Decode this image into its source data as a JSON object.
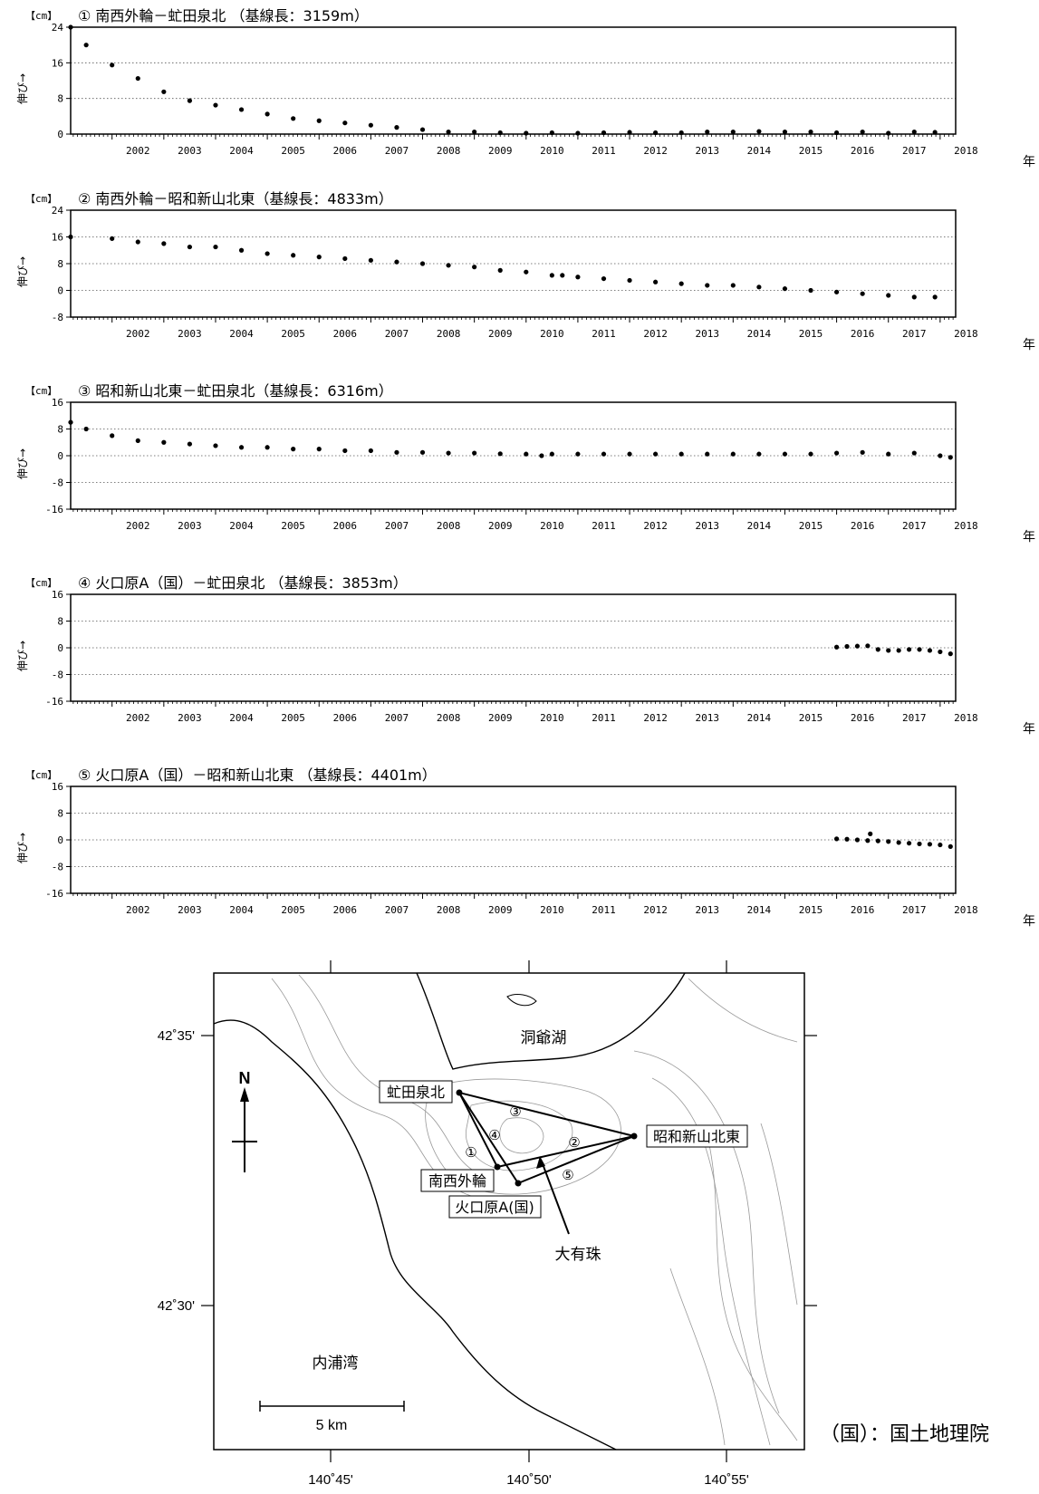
{
  "year_suffix": "年",
  "ylabel": "伸び→",
  "unit": "【cm】",
  "chart_data": [
    {
      "type": "scatter",
      "title": "① 南西外輪－虻田泉北 （基線長：3159m）",
      "ylim": [
        0,
        24
      ],
      "yticks": [
        24,
        16,
        8,
        0
      ],
      "xlim": [
        2001.2,
        2018.3
      ],
      "xticks": [
        "2002",
        "2003",
        "2004",
        "2005",
        "2006",
        "2007",
        "2008",
        "2009",
        "2010",
        "2011",
        "2012",
        "2013",
        "2014",
        "2015",
        "2016",
        "2017",
        "2018"
      ],
      "grid": true,
      "series": [
        {
          "x": [
            2001.2,
            2001.5,
            2002.0,
            2002.5,
            2003.0,
            2003.5,
            2004.0,
            2004.5,
            2005.0,
            2005.5,
            2006.0,
            2006.5,
            2007.0,
            2007.5,
            2008.0,
            2008.5,
            2009.0,
            2009.5,
            2010.0,
            2010.5,
            2011.0,
            2011.5,
            2012.0,
            2012.5,
            2013.0,
            2013.5,
            2014.0,
            2014.5,
            2015.0,
            2015.5,
            2016.0,
            2016.5,
            2017.0,
            2017.5,
            2017.9
          ],
          "y": [
            24,
            20,
            15.5,
            12.5,
            9.5,
            7.5,
            6.5,
            5.5,
            4.5,
            3.5,
            3,
            2.5,
            2,
            1.5,
            1,
            0.5,
            0.5,
            0.3,
            0.2,
            0.3,
            0.2,
            0.3,
            0.4,
            0.3,
            0.3,
            0.5,
            0.5,
            0.6,
            0.5,
            0.5,
            0.3,
            0.5,
            0.2,
            0.5,
            0.4
          ]
        }
      ]
    },
    {
      "type": "scatter",
      "title": "② 南西外輪－昭和新山北東（基線長：4833m）",
      "ylim": [
        -8,
        24
      ],
      "yticks": [
        24,
        16,
        8,
        0,
        -8
      ],
      "xlim": [
        2001.2,
        2018.3
      ],
      "xticks": [
        "2002",
        "2003",
        "2004",
        "2005",
        "2006",
        "2007",
        "2008",
        "2009",
        "2010",
        "2011",
        "2012",
        "2013",
        "2014",
        "2015",
        "2016",
        "2017",
        "2018"
      ],
      "grid": true,
      "series": [
        {
          "x": [
            2001.2,
            2002.0,
            2002.5,
            2003.0,
            2003.5,
            2004.0,
            2004.5,
            2005.0,
            2005.5,
            2006.0,
            2006.5,
            2007.0,
            2007.5,
            2008.0,
            2008.5,
            2009.0,
            2009.5,
            2010.0,
            2010.5,
            2010.7,
            2011.0,
            2011.5,
            2012.0,
            2012.5,
            2013.0,
            2013.5,
            2014.0,
            2014.5,
            2015.0,
            2015.5,
            2016.0,
            2016.5,
            2017.0,
            2017.5,
            2017.9
          ],
          "y": [
            16,
            15.5,
            14.5,
            14,
            13,
            13,
            12,
            11,
            10.5,
            10,
            9.5,
            9,
            8.5,
            8,
            7.5,
            7,
            6,
            5.5,
            4.5,
            4.5,
            4,
            3.5,
            3,
            2.5,
            2,
            1.5,
            1.5,
            1,
            0.5,
            0,
            -0.5,
            -1,
            -1.5,
            -2,
            -2
          ]
        }
      ]
    },
    {
      "type": "scatter",
      "title": "③ 昭和新山北東－虻田泉北（基線長：6316m）",
      "ylim": [
        -16,
        16
      ],
      "yticks": [
        16,
        8,
        0,
        -8,
        -16
      ],
      "xlim": [
        2001.2,
        2018.3
      ],
      "xticks": [
        "2002",
        "2003",
        "2004",
        "2005",
        "2006",
        "2007",
        "2008",
        "2009",
        "2010",
        "2011",
        "2012",
        "2013",
        "2014",
        "2015",
        "2016",
        "2017",
        "2018"
      ],
      "grid": true,
      "series": [
        {
          "x": [
            2001.2,
            2001.5,
            2002.0,
            2002.5,
            2003.0,
            2003.5,
            2004.0,
            2004.5,
            2005.0,
            2005.5,
            2006.0,
            2006.5,
            2007.0,
            2007.5,
            2008.0,
            2008.5,
            2009.0,
            2009.5,
            2010.0,
            2010.3,
            2010.5,
            2011.0,
            2011.5,
            2012.0,
            2012.5,
            2013.0,
            2013.5,
            2014.0,
            2014.5,
            2015.0,
            2015.5,
            2016.0,
            2016.5,
            2017.0,
            2017.5,
            2018.0,
            2018.2
          ],
          "y": [
            10,
            8,
            6,
            4.5,
            4,
            3.5,
            3,
            2.5,
            2.5,
            2,
            2,
            1.5,
            1.5,
            1,
            1,
            0.8,
            0.8,
            0.6,
            0.5,
            0,
            0.5,
            0.5,
            0.5,
            0.5,
            0.5,
            0.5,
            0.5,
            0.5,
            0.5,
            0.5,
            0.5,
            0.8,
            1,
            0.5,
            0.8,
            0,
            -0.5
          ]
        }
      ]
    },
    {
      "type": "scatter",
      "title": "④ 火口原A（国）－虻田泉北 （基線長：3853m）",
      "ylim": [
        -16,
        16
      ],
      "yticks": [
        16,
        8,
        0,
        -8,
        -16
      ],
      "xlim": [
        2001.2,
        2018.3
      ],
      "xticks": [
        "2002",
        "2003",
        "2004",
        "2005",
        "2006",
        "2007",
        "2008",
        "2009",
        "2010",
        "2011",
        "2012",
        "2013",
        "2014",
        "2015",
        "2016",
        "2017",
        "2018"
      ],
      "grid": true,
      "series": [
        {
          "x": [
            2016.0,
            2016.2,
            2016.4,
            2016.6,
            2016.8,
            2017.0,
            2017.2,
            2017.4,
            2017.6,
            2017.8,
            2018.0,
            2018.2
          ],
          "y": [
            0.2,
            0.4,
            0.5,
            0.6,
            -0.5,
            -0.8,
            -0.8,
            -0.5,
            -0.5,
            -0.8,
            -1.2,
            -1.8
          ]
        }
      ]
    },
    {
      "type": "scatter",
      "title": "⑤ 火口原A（国）－昭和新山北東 （基線長：4401m）",
      "ylim": [
        -16,
        16
      ],
      "yticks": [
        16,
        8,
        0,
        -8,
        -16
      ],
      "xlim": [
        2001.2,
        2018.3
      ],
      "xticks": [
        "2002",
        "2003",
        "2004",
        "2005",
        "2006",
        "2007",
        "2008",
        "2009",
        "2010",
        "2011",
        "2012",
        "2013",
        "2014",
        "2015",
        "2016",
        "2017",
        "2018"
      ],
      "grid": true,
      "series": [
        {
          "x": [
            2016.0,
            2016.2,
            2016.4,
            2016.6,
            2016.65,
            2016.8,
            2017.0,
            2017.2,
            2017.4,
            2017.6,
            2017.8,
            2018.0,
            2018.2
          ],
          "y": [
            0.3,
            0.2,
            0,
            -0.2,
            1.8,
            -0.3,
            -0.5,
            -0.8,
            -1,
            -1.2,
            -1.3,
            -1.5,
            -2
          ]
        }
      ]
    }
  ],
  "map": {
    "lat_labels": [
      "42˚35'",
      "42˚30'"
    ],
    "lon_labels": [
      "140˚45'",
      "140˚50'",
      "140˚55'"
    ],
    "north": "N",
    "lake": "洞爺湖",
    "bay": "内浦湾",
    "mountain": "大有珠",
    "scale": "5 km",
    "stations": [
      "虻田泉北",
      "昭和新山北東",
      "南西外輪",
      "火口原A(国)"
    ],
    "baseline_marks": [
      "①",
      "②",
      "③",
      "④",
      "⑤"
    ]
  },
  "credit": "（国）：国土地理院"
}
